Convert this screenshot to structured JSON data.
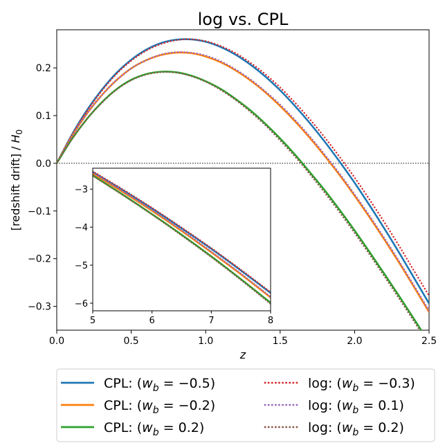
{
  "chart_data": {
    "type": "line",
    "title": "log vs. CPL",
    "xlabel": "z",
    "ylabel": "[redshift drift] / H₀",
    "xlim": [
      0.0,
      2.5
    ],
    "ylim": [
      -0.35,
      0.28
    ],
    "xticks": [
      "0.0",
      "0.5",
      "1.0",
      "1.5",
      "2.0",
      "2.5"
    ],
    "xtick_values": [
      0.0,
      0.5,
      1.0,
      1.5,
      2.0,
      2.5
    ],
    "yticks": [
      "−0.3",
      "−0.2",
      "−0.1",
      "0.0",
      "0.1",
      "0.2"
    ],
    "ytick_values": [
      -0.3,
      -0.2,
      -0.1,
      0.0,
      0.1,
      0.2
    ],
    "reference_line": {
      "y": 0.0,
      "style": "dotted",
      "color": "#000000"
    },
    "legend_position": "below plot, two columns",
    "series": [
      {
        "name": "CPL: (w_b = −0.5)",
        "color": "#1f77b4",
        "style": "solid",
        "x": [
          0.0,
          0.1,
          0.2,
          0.3,
          0.4,
          0.5,
          0.6,
          0.7,
          0.8,
          0.9,
          1.0,
          1.1,
          1.2,
          1.3,
          1.4,
          1.5,
          1.6,
          1.7,
          1.8,
          1.9,
          2.0,
          2.1,
          2.2,
          2.3,
          2.4,
          2.5
        ],
        "y": [
          0.0,
          0.059,
          0.11,
          0.153,
          0.189,
          0.217,
          0.238,
          0.252,
          0.259,
          0.26,
          0.255,
          0.244,
          0.228,
          0.207,
          0.182,
          0.153,
          0.12,
          0.084,
          0.045,
          0.003,
          -0.041,
          -0.088,
          -0.137,
          -0.188,
          -0.241,
          -0.294
        ]
      },
      {
        "name": "CPL: (w_b = −0.2)",
        "color": "#ff7f0e",
        "style": "solid",
        "x": [
          0.0,
          0.1,
          0.2,
          0.3,
          0.4,
          0.5,
          0.6,
          0.7,
          0.8,
          0.9,
          1.0,
          1.1,
          1.2,
          1.3,
          1.4,
          1.5,
          1.6,
          1.7,
          1.8,
          1.9,
          2.0,
          2.1,
          2.2,
          2.3,
          2.4,
          2.5
        ],
        "y": [
          0.0,
          0.056,
          0.103,
          0.142,
          0.174,
          0.199,
          0.216,
          0.227,
          0.232,
          0.231,
          0.224,
          0.212,
          0.195,
          0.174,
          0.149,
          0.12,
          0.088,
          0.053,
          0.015,
          -0.025,
          -0.068,
          -0.113,
          -0.16,
          -0.209,
          -0.26,
          -0.312
        ]
      },
      {
        "name": "CPL: (w_b = 0.2)",
        "color": "#2ca02c",
        "style": "solid",
        "x": [
          0.0,
          0.1,
          0.2,
          0.3,
          0.4,
          0.5,
          0.6,
          0.7,
          0.8,
          0.9,
          1.0,
          1.1,
          1.2,
          1.3,
          1.4,
          1.5,
          1.6,
          1.7,
          1.8,
          1.9,
          2.0,
          2.1,
          2.2,
          2.3,
          2.4,
          2.5
        ],
        "y": [
          0.0,
          0.05,
          0.092,
          0.127,
          0.155,
          0.175,
          0.187,
          0.192,
          0.191,
          0.184,
          0.172,
          0.156,
          0.135,
          0.111,
          0.083,
          0.052,
          0.018,
          -0.019,
          -0.057,
          -0.098,
          -0.141,
          -0.186,
          -0.232,
          -0.279,
          -0.327,
          -0.376
        ]
      },
      {
        "name": "log: (w_b = −0.3)",
        "color": "#d62728",
        "style": "dotted",
        "x": [
          0.0,
          0.1,
          0.2,
          0.3,
          0.4,
          0.5,
          0.6,
          0.7,
          0.8,
          0.9,
          1.0,
          1.1,
          1.2,
          1.3,
          1.4,
          1.5,
          1.6,
          1.7,
          1.8,
          1.9,
          2.0,
          2.1,
          2.2,
          2.3,
          2.4,
          2.5
        ],
        "y": [
          0.0,
          0.058,
          0.108,
          0.151,
          0.187,
          0.215,
          0.236,
          0.25,
          0.258,
          0.26,
          0.256,
          0.246,
          0.231,
          0.211,
          0.187,
          0.159,
          0.127,
          0.092,
          0.054,
          0.013,
          -0.03,
          -0.076,
          -0.124,
          -0.174,
          -0.226,
          -0.278
        ]
      },
      {
        "name": "log: (w_b = 0.1)",
        "color": "#9467bd",
        "style": "dotted",
        "x": [
          0.0,
          0.1,
          0.2,
          0.3,
          0.4,
          0.5,
          0.6,
          0.7,
          0.8,
          0.9,
          1.0,
          1.1,
          1.2,
          1.3,
          1.4,
          1.5,
          1.6,
          1.7,
          1.8,
          1.9,
          2.0,
          2.1,
          2.2,
          2.3,
          2.4,
          2.5
        ],
        "y": [
          0.0,
          0.056,
          0.103,
          0.142,
          0.174,
          0.199,
          0.216,
          0.228,
          0.233,
          0.232,
          0.226,
          0.214,
          0.197,
          0.176,
          0.151,
          0.123,
          0.091,
          0.056,
          0.018,
          -0.022,
          -0.065,
          -0.11,
          -0.157,
          -0.206,
          -0.257,
          -0.309
        ]
      },
      {
        "name": "log: (w_b = 0.2)",
        "color": "#8c564b",
        "style": "dotted",
        "x": [
          0.0,
          0.1,
          0.2,
          0.3,
          0.4,
          0.5,
          0.6,
          0.7,
          0.8,
          0.9,
          1.0,
          1.1,
          1.2,
          1.3,
          1.4,
          1.5,
          1.6,
          1.7,
          1.8,
          1.9,
          2.0,
          2.1,
          2.2,
          2.3,
          2.4,
          2.5
        ],
        "y": [
          0.0,
          0.05,
          0.092,
          0.126,
          0.154,
          0.174,
          0.186,
          0.191,
          0.19,
          0.183,
          0.171,
          0.154,
          0.133,
          0.108,
          0.08,
          0.048,
          0.014,
          -0.023,
          -0.062,
          -0.103,
          -0.146,
          -0.191,
          -0.237,
          -0.284,
          -0.332,
          -0.381
        ]
      }
    ],
    "inset": {
      "xlim": [
        5,
        8
      ],
      "ylim": [
        -6.2,
        -2.45
      ],
      "xticks": [
        "5",
        "6",
        "7",
        "8"
      ],
      "xtick_values": [
        5,
        6,
        7,
        8
      ],
      "yticks": [
        "−6",
        "−5",
        "−4",
        "−3"
      ],
      "ytick_values": [
        -6,
        -5,
        -4,
        -3
      ],
      "series": [
        {
          "color": "#1f77b4",
          "style": "solid",
          "x": [
            5.0,
            5.5,
            6.0,
            6.5,
            7.0,
            7.5,
            8.0
          ],
          "y": [
            -2.55,
            -3.02,
            -3.51,
            -4.03,
            -4.57,
            -5.14,
            -5.73
          ]
        },
        {
          "color": "#ff7f0e",
          "style": "solid",
          "x": [
            5.0,
            5.5,
            6.0,
            6.5,
            7.0,
            7.5,
            8.0
          ],
          "y": [
            -2.59,
            -3.07,
            -3.57,
            -4.1,
            -4.66,
            -5.24,
            -5.85
          ]
        },
        {
          "color": "#2ca02c",
          "style": "solid",
          "x": [
            5.0,
            5.5,
            6.0,
            6.5,
            7.0,
            7.5,
            8.0
          ],
          "y": [
            -2.64,
            -3.14,
            -3.66,
            -4.2,
            -4.77,
            -5.37,
            -5.99
          ]
        },
        {
          "color": "#d62728",
          "style": "dotted",
          "x": [
            5.0,
            5.5,
            6.0,
            6.5,
            7.0,
            7.5,
            8.0
          ],
          "y": [
            -2.53,
            -3.0,
            -3.49,
            -4.01,
            -4.55,
            -5.12,
            -5.71
          ]
        },
        {
          "color": "#9467bd",
          "style": "dotted",
          "x": [
            5.0,
            5.5,
            6.0,
            6.5,
            7.0,
            7.5,
            8.0
          ],
          "y": [
            -2.57,
            -3.05,
            -3.55,
            -4.08,
            -4.64,
            -5.22,
            -5.83
          ]
        },
        {
          "color": "#8c564b",
          "style": "dotted",
          "x": [
            5.0,
            5.5,
            6.0,
            6.5,
            7.0,
            7.5,
            8.0
          ],
          "y": [
            -2.65,
            -3.15,
            -3.67,
            -4.22,
            -4.79,
            -5.39,
            -6.02
          ]
        }
      ]
    }
  }
}
